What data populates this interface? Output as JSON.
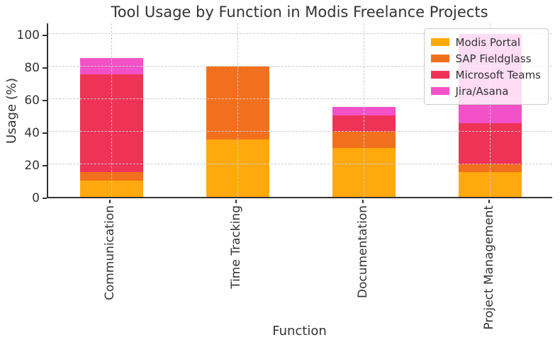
{
  "chart_data": {
    "type": "bar",
    "stacked": true,
    "title": "Tool Usage by Function in Modis Freelance Projects",
    "xlabel": "Function",
    "ylabel": "Usage (%)",
    "categories": [
      "Communication",
      "Time Tracking",
      "Documentation",
      "Project Management"
    ],
    "series": [
      {
        "name": "Modis Portal",
        "color": "#FFA90E",
        "values": [
          10,
          35,
          30,
          15
        ]
      },
      {
        "name": "SAP Fieldglass",
        "color": "#F2701D",
        "values": [
          5,
          45,
          10,
          5
        ]
      },
      {
        "name": "Microsoft Teams",
        "color": "#EE3356",
        "values": [
          60,
          0,
          10,
          25
        ]
      },
      {
        "name": "Jira/Asana",
        "color": "#F351C7",
        "values": [
          10,
          0,
          5,
          55
        ]
      }
    ],
    "totals": [
      85,
      80,
      55,
      100
    ],
    "ylim": [
      0,
      105
    ],
    "yticks": [
      0,
      20,
      40,
      60,
      80,
      100
    ],
    "grid": true,
    "grid_style": "dashed",
    "legend_position": "upper right",
    "axis_color": "#333333",
    "grid_color": "#cccccc"
  }
}
